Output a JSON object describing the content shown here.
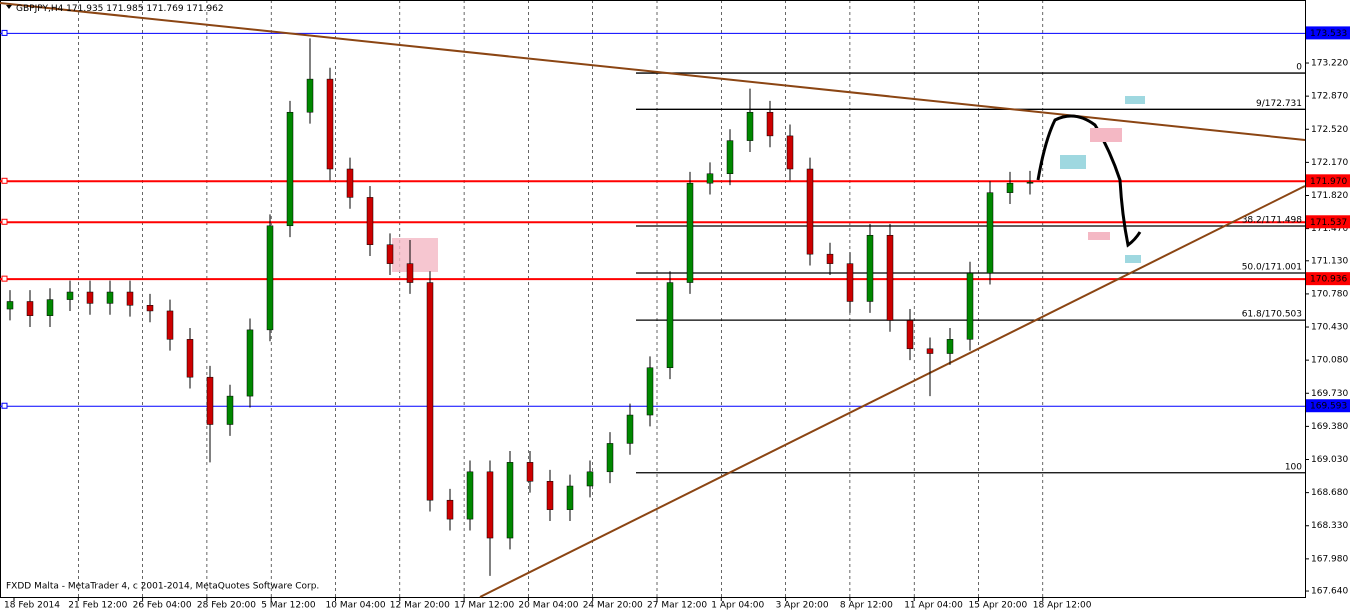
{
  "chart_data": {
    "type": "candlestick",
    "symbol": "GBPJPY,H4",
    "quote": [
      171.935,
      171.985,
      171.769,
      171.962
    ],
    "footer": "FXDD Malta - MetaTrader 4, c 2001-2014, MetaQuotes Software Corp.",
    "categories": [
      "18 Feb 2014",
      "21 Feb 12:00",
      "26 Feb 04:00",
      "28 Feb 20:00",
      "5 Mar 12:00",
      "10 Mar 04:00",
      "12 Mar 20:00",
      "17 Mar 12:00",
      "20 Mar 04:00",
      "24 Mar 20:00",
      "27 Mar 12:00",
      "1 Apr 04:00",
      "3 Apr 20:00",
      "8 Apr 12:00",
      "11 Apr 04:00",
      "15 Apr 20:00",
      "18 Apr 12:00"
    ],
    "ylim": [
      167.577,
      173.886
    ],
    "yticks": [
      {
        "value": 173.22,
        "label": "173.220"
      },
      {
        "value": 172.87,
        "label": "172.870"
      },
      {
        "value": 172.52,
        "label": "172.520"
      },
      {
        "value": 172.17,
        "label": "172.170"
      },
      {
        "value": 171.82,
        "label": "171.820"
      },
      {
        "value": 171.47,
        "label": "171.470"
      },
      {
        "value": 171.13,
        "label": "171.130"
      },
      {
        "value": 170.78,
        "label": "170.780"
      },
      {
        "value": 170.43,
        "label": "170.430"
      },
      {
        "value": 170.08,
        "label": "170.080"
      },
      {
        "value": 169.73,
        "label": "169.730"
      },
      {
        "value": 169.38,
        "label": "169.380"
      },
      {
        "value": 169.03,
        "label": "169.030"
      },
      {
        "value": 168.68,
        "label": "168.680"
      },
      {
        "value": 168.33,
        "label": "168.330"
      },
      {
        "value": 167.98,
        "label": "167.980"
      },
      {
        "value": 167.64,
        "label": "167.640"
      }
    ],
    "levels": [
      {
        "value": 173.533,
        "label": "173.533",
        "color": "#0000ff"
      },
      {
        "value": 171.97,
        "label": "171.970",
        "color": "#ff0000"
      },
      {
        "value": 171.537,
        "label": "171.537",
        "color": "#ff0000"
      },
      {
        "value": 170.936,
        "label": "170.936",
        "color": "#ff0000"
      },
      {
        "value": 169.593,
        "label": "169.593",
        "color": "#0000ff"
      }
    ],
    "fibo": [
      {
        "price": 173.114,
        "label": "0"
      },
      {
        "price": 172.731,
        "label": "9/172.731"
      },
      {
        "price": 171.498,
        "label": "38.2/171.498"
      },
      {
        "price": 171.001,
        "label": "50.0/171.001"
      },
      {
        "price": 170.503,
        "label": "61.8/170.503"
      },
      {
        "price": 168.89,
        "label": "100"
      }
    ],
    "up_color": "#008800",
    "down_color": "#cc0000",
    "open": [
      170.62,
      170.7,
      170.55,
      170.72,
      170.8,
      170.68,
      170.8,
      170.66,
      170.6,
      170.3,
      169.9,
      169.4,
      169.7,
      170.4,
      171.5,
      172.7,
      173.05,
      172.1,
      171.8,
      171.3,
      171.1,
      170.9,
      168.6,
      168.4,
      168.9,
      168.2,
      169.0,
      168.8,
      168.5,
      168.75,
      168.9,
      169.2,
      169.5,
      170.0,
      170.9,
      171.95,
      172.05,
      172.4,
      172.7,
      172.45,
      172.1,
      171.2,
      171.1,
      170.7,
      171.4,
      170.5,
      170.2,
      170.15,
      170.3,
      171.0,
      171.85,
      171.95
    ],
    "high": [
      170.82,
      170.82,
      170.84,
      170.92,
      170.92,
      170.92,
      170.92,
      170.78,
      170.72,
      170.42,
      170.02,
      169.82,
      170.52,
      171.62,
      172.82,
      173.48,
      173.17,
      172.22,
      171.92,
      171.42,
      171.35,
      171.02,
      168.72,
      169.02,
      169.02,
      169.12,
      169.12,
      168.92,
      168.87,
      169.02,
      169.32,
      169.62,
      170.12,
      171.02,
      172.07,
      172.17,
      172.52,
      172.95,
      172.82,
      172.57,
      172.22,
      171.32,
      171.22,
      171.52,
      171.52,
      170.62,
      170.32,
      170.42,
      171.12,
      171.97,
      172.07,
      172.08
    ],
    "low": [
      170.5,
      170.43,
      170.43,
      170.6,
      170.56,
      170.56,
      170.54,
      170.48,
      170.18,
      169.78,
      169.0,
      169.28,
      169.58,
      170.28,
      171.38,
      172.58,
      171.98,
      171.68,
      171.18,
      170.98,
      170.78,
      168.48,
      168.28,
      168.28,
      167.8,
      168.08,
      168.68,
      168.38,
      168.38,
      168.63,
      168.78,
      169.08,
      169.38,
      169.88,
      170.78,
      171.83,
      171.93,
      172.28,
      172.33,
      171.98,
      171.08,
      170.98,
      170.58,
      170.58,
      170.38,
      170.08,
      169.7,
      170.03,
      170.18,
      170.88,
      171.73,
      171.83
    ],
    "close": [
      170.7,
      170.55,
      170.72,
      170.8,
      170.68,
      170.8,
      170.66,
      170.6,
      170.3,
      169.9,
      169.4,
      169.7,
      170.4,
      171.5,
      172.7,
      173.05,
      172.1,
      171.8,
      171.3,
      171.1,
      170.9,
      168.6,
      168.4,
      168.9,
      168.2,
      169.0,
      168.8,
      168.5,
      168.75,
      168.9,
      169.2,
      169.5,
      170.0,
      170.9,
      171.95,
      172.05,
      172.4,
      172.7,
      172.45,
      172.1,
      171.2,
      171.1,
      170.7,
      171.4,
      170.5,
      170.2,
      170.15,
      170.3,
      171.0,
      171.85,
      171.95,
      171.96
    ]
  }
}
